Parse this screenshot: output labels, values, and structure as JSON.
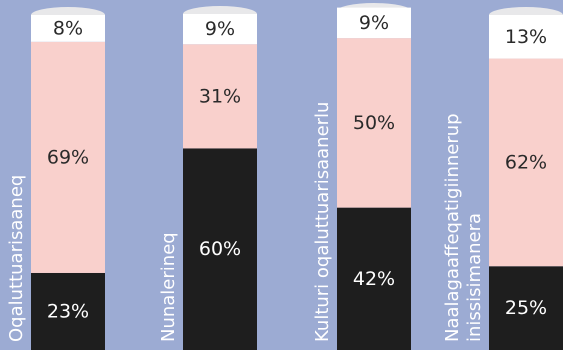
{
  "chart_data": {
    "type": "bar",
    "stacked": true,
    "percent": true,
    "categories": [
      [
        "Oqaluttuarisaaneq"
      ],
      [
        "Nunalerineq"
      ],
      [
        "Kulturi oqaluttuarisaanerlu"
      ],
      [
        "Naalagaaffeqatigiinnerup",
        "inissisimanera"
      ]
    ],
    "series": [
      {
        "values": [
          23,
          60,
          42,
          25
        ],
        "labels": [
          "23%",
          "60%",
          "42%",
          "25%"
        ],
        "color": "#1e1e1e",
        "text_color": "#ffffff"
      },
      {
        "values": [
          69,
          31,
          50,
          62
        ],
        "labels": [
          "69%",
          "31%",
          "50%",
          "62%"
        ],
        "color": "#f9d0cc",
        "text_color": "#2a2a2a"
      },
      {
        "values": [
          8,
          9,
          9,
          13
        ],
        "labels": [
          "8%",
          "9%",
          "9%",
          "13%"
        ],
        "color": "#ffffff",
        "text_color": "#2a2a2a"
      }
    ],
    "ylim": [
      0,
      100
    ],
    "colors": {
      "background": "#9cabd3",
      "cap_top": "#e8e8ea"
    }
  }
}
